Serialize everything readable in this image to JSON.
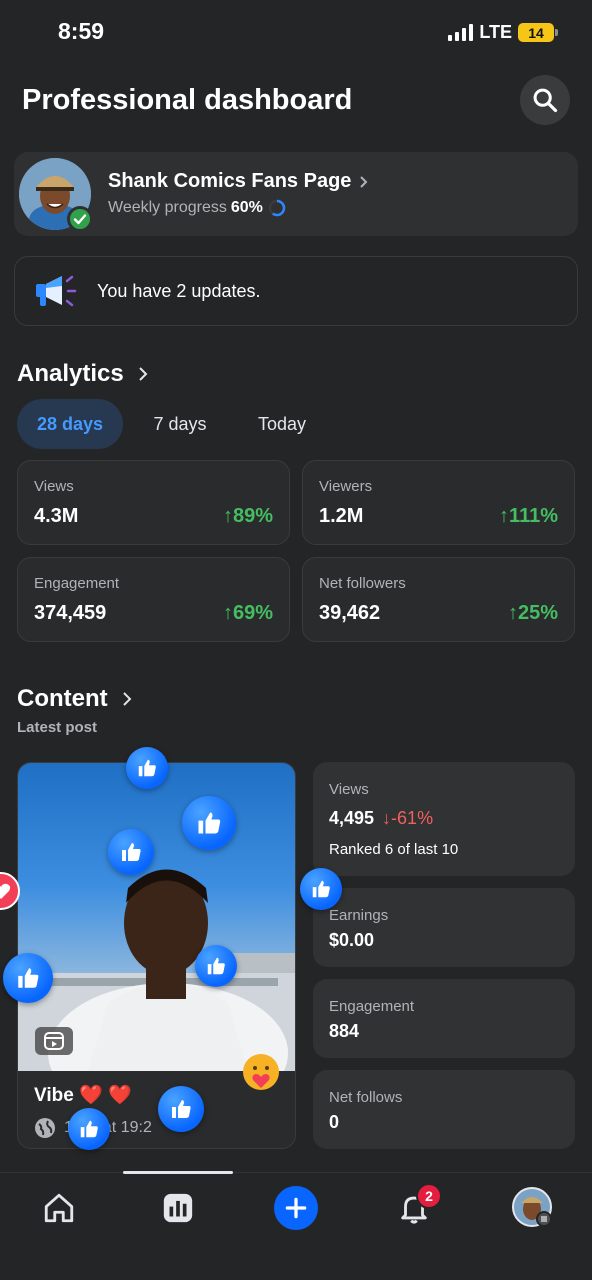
{
  "status_bar": {
    "time": "8:59",
    "network": "LTE",
    "battery": "14"
  },
  "header": {
    "title": "Professional dashboard"
  },
  "page": {
    "name": "Shank Comics Fans Page",
    "progress_label": "Weekly progress",
    "progress_value": "60%"
  },
  "updates": {
    "text": "You have 2 updates."
  },
  "analytics": {
    "title": "Analytics",
    "tabs": [
      {
        "label": "28 days",
        "active": true
      },
      {
        "label": "7 days",
        "active": false
      },
      {
        "label": "Today",
        "active": false
      }
    ],
    "stats": [
      {
        "label": "Views",
        "value": "4.3M",
        "change": "89%"
      },
      {
        "label": "Viewers",
        "value": "1.2M",
        "change": "111%"
      },
      {
        "label": "Engagement",
        "value": "374,459",
        "change": "69%"
      },
      {
        "label": "Net followers",
        "value": "39,462",
        "change": "25%"
      }
    ]
  },
  "content": {
    "title": "Content",
    "subtitle": "Latest post",
    "post": {
      "title": "Vibe ❤️ ❤️",
      "meta": "1",
      "meta_time": "at 19:2"
    },
    "metrics": {
      "views_label": "Views",
      "views_value": "4,495",
      "views_change": "-61%",
      "ranked": "Ranked 6 of last 10",
      "earnings_label": "Earnings",
      "earnings_value": "$0.00",
      "engagement_label": "Engagement",
      "engagement_value": "884",
      "net_follows_label": "Net follows",
      "net_follows_value": "0"
    }
  },
  "nav": {
    "notifications_badge": "2"
  },
  "colors": {
    "accent": "#0866ff",
    "positive": "#45bd62",
    "negative": "#f0605d",
    "background": "#242526"
  }
}
